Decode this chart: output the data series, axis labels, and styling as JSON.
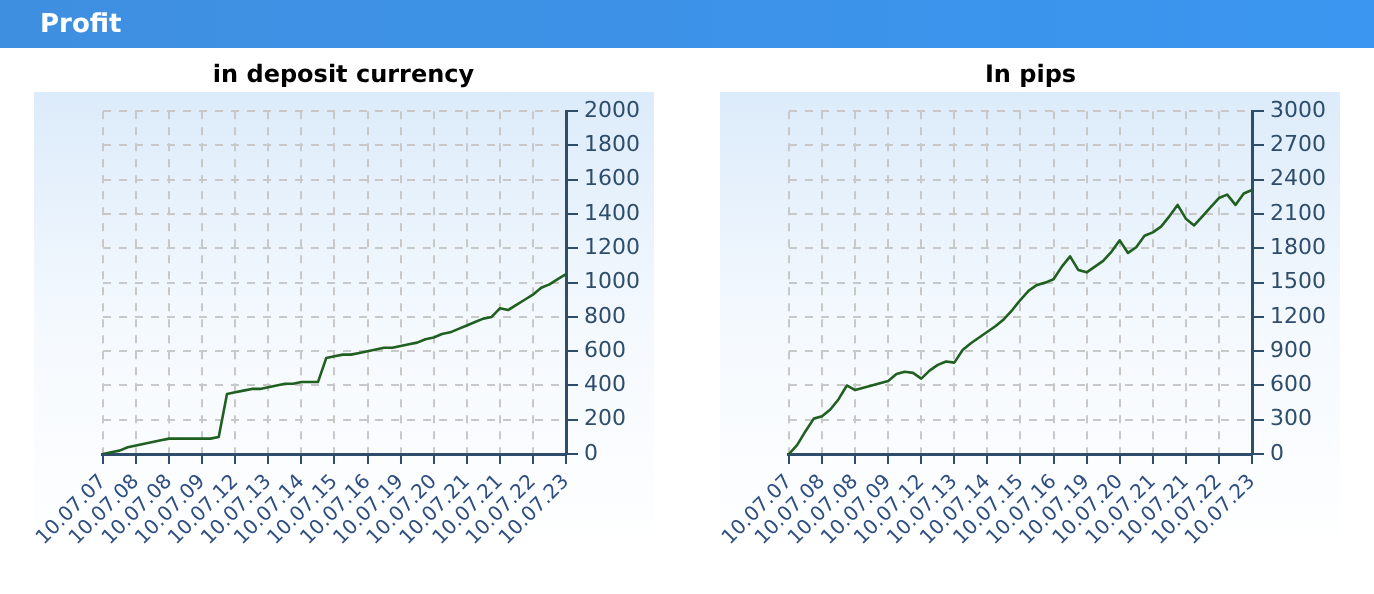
{
  "chart_data": [
    {
      "type": "line",
      "title": "Profit",
      "subtitle": "in deposit currency",
      "categories": [
        "10.07.07",
        null,
        null,
        null,
        "10.07.08",
        null,
        null,
        null,
        "10.07.08",
        null,
        null,
        null,
        "10.07.09",
        null,
        null,
        null,
        "10.07.12",
        null,
        null,
        null,
        "10.07.13",
        null,
        null,
        null,
        "10.07.14",
        null,
        null,
        null,
        "10.07.15",
        null,
        null,
        null,
        "10.07.16",
        null,
        null,
        null,
        "10.07.19",
        null,
        null,
        null,
        "10.07.20",
        null,
        null,
        null,
        "10.07.21",
        null,
        null,
        null,
        "10.07.21",
        null,
        null,
        null,
        "10.07.22",
        null,
        null,
        null,
        "10.07.23"
      ],
      "ylim": [
        0,
        2000
      ],
      "yticks": [
        0,
        200,
        400,
        600,
        800,
        1000,
        1200,
        1400,
        1600,
        1800,
        2000
      ],
      "grid": true,
      "series": [
        {
          "color": "#1f5f1f",
          "values": [
            0,
            10,
            20,
            40,
            50,
            60,
            70,
            80,
            90,
            90,
            90,
            90,
            90,
            90,
            100,
            350,
            360,
            370,
            380,
            380,
            390,
            400,
            410,
            410,
            420,
            420,
            420,
            560,
            570,
            580,
            580,
            590,
            600,
            610,
            620,
            620,
            630,
            640,
            650,
            670,
            680,
            700,
            710,
            730,
            750,
            770,
            790,
            800,
            850,
            840,
            870,
            900,
            930,
            970,
            990,
            1020,
            1050
          ]
        }
      ]
    },
    {
      "type": "line",
      "subtitle": "In pips",
      "categories": [
        "10.07.07",
        null,
        null,
        null,
        "10.07.08",
        null,
        null,
        null,
        "10.07.08",
        null,
        null,
        null,
        "10.07.09",
        null,
        null,
        null,
        "10.07.12",
        null,
        null,
        null,
        "10.07.13",
        null,
        null,
        null,
        "10.07.14",
        null,
        null,
        null,
        "10.07.15",
        null,
        null,
        null,
        "10.07.16",
        null,
        null,
        null,
        "10.07.19",
        null,
        null,
        null,
        "10.07.20",
        null,
        null,
        null,
        "10.07.21",
        null,
        null,
        null,
        "10.07.21",
        null,
        null,
        null,
        "10.07.22",
        null,
        null,
        null,
        "10.07.23"
      ],
      "ylim": [
        0,
        3000
      ],
      "yticks": [
        0,
        300,
        600,
        900,
        1200,
        1500,
        1800,
        2100,
        2400,
        2700,
        3000
      ],
      "grid": true,
      "series": [
        {
          "color": "#1f5f1f",
          "values": [
            0,
            80,
            200,
            310,
            330,
            390,
            480,
            600,
            560,
            580,
            600,
            620,
            640,
            700,
            720,
            710,
            660,
            730,
            780,
            810,
            800,
            910,
            970,
            1020,
            1070,
            1120,
            1180,
            1260,
            1350,
            1430,
            1480,
            1500,
            1530,
            1640,
            1730,
            1610,
            1590,
            1640,
            1690,
            1770,
            1870,
            1760,
            1810,
            1910,
            1940,
            1990,
            2080,
            2180,
            2060,
            2000,
            2080,
            2160,
            2240,
            2270,
            2180,
            2280,
            2310
          ]
        }
      ]
    }
  ]
}
